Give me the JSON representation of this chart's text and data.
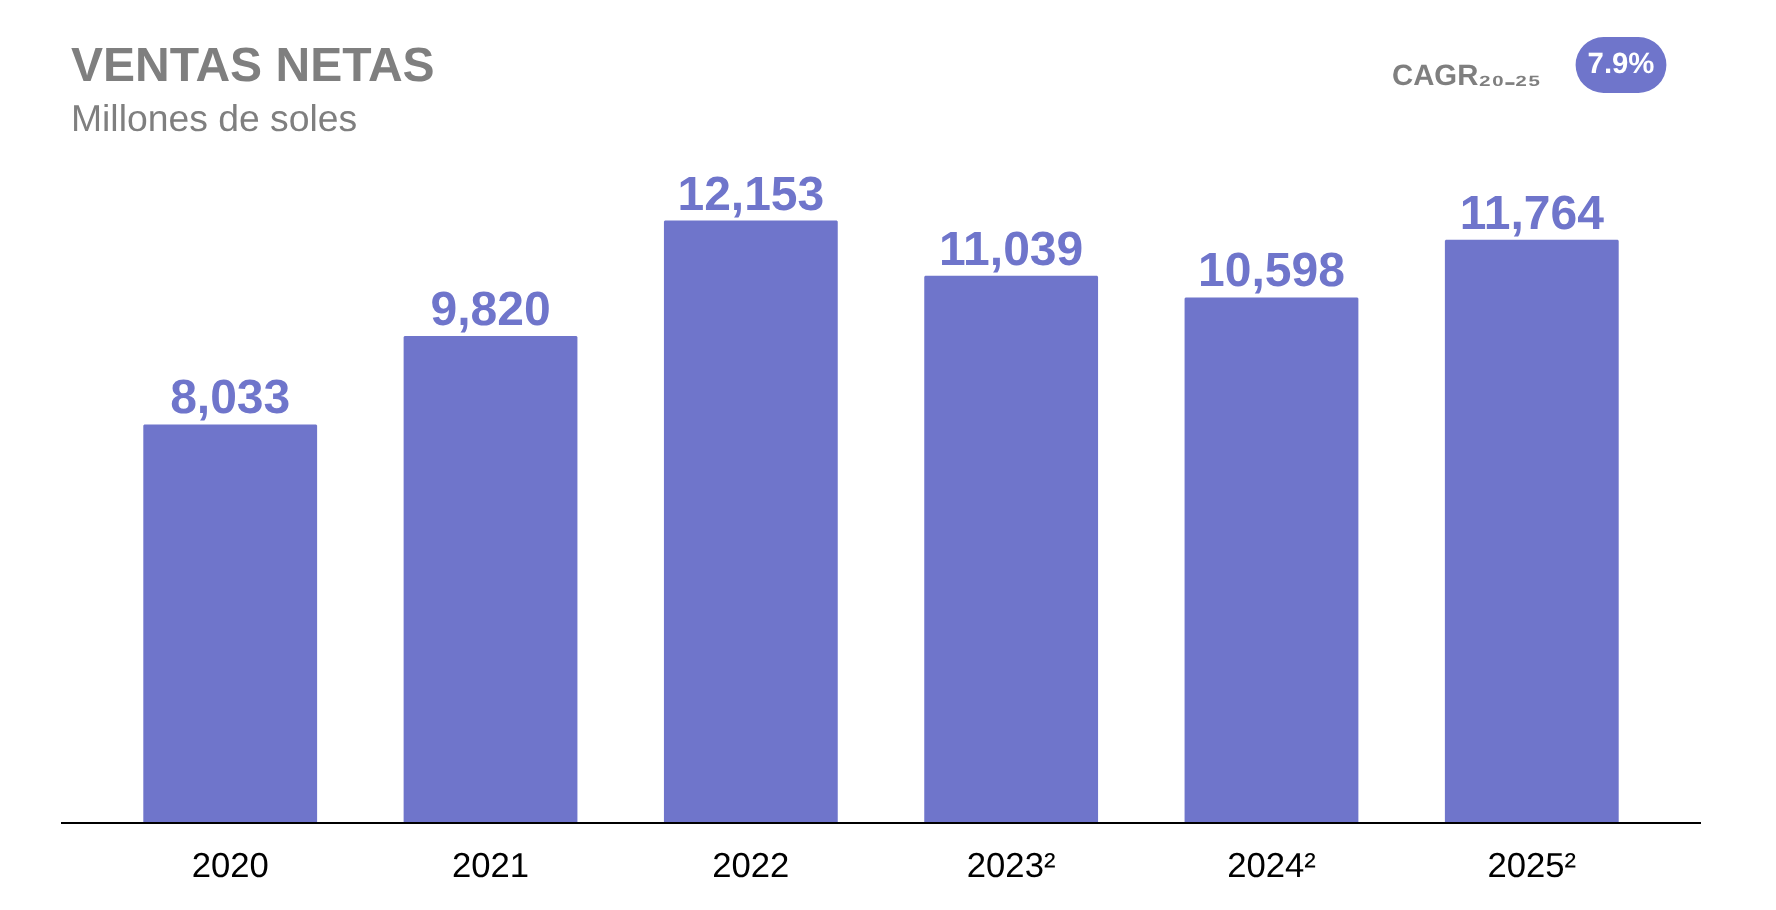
{
  "chart_data": {
    "type": "bar",
    "title": "VENTAS NETAS",
    "subtitle": "Millones de soles",
    "categories": [
      "2020",
      "2021",
      "2022",
      "2023²",
      "2024²",
      "2025²"
    ],
    "values": [
      8033,
      9820,
      12153,
      11039,
      10598,
      11764
    ],
    "value_labels": [
      "8,033",
      "9,820",
      "12,153",
      "11,039",
      "10,598",
      "11,764"
    ],
    "color": "#6f75cb",
    "grid": false,
    "tick_labels": "x",
    "annotations": [
      "CAGR₂₀₋₂₅",
      "7.9%"
    ]
  }
}
